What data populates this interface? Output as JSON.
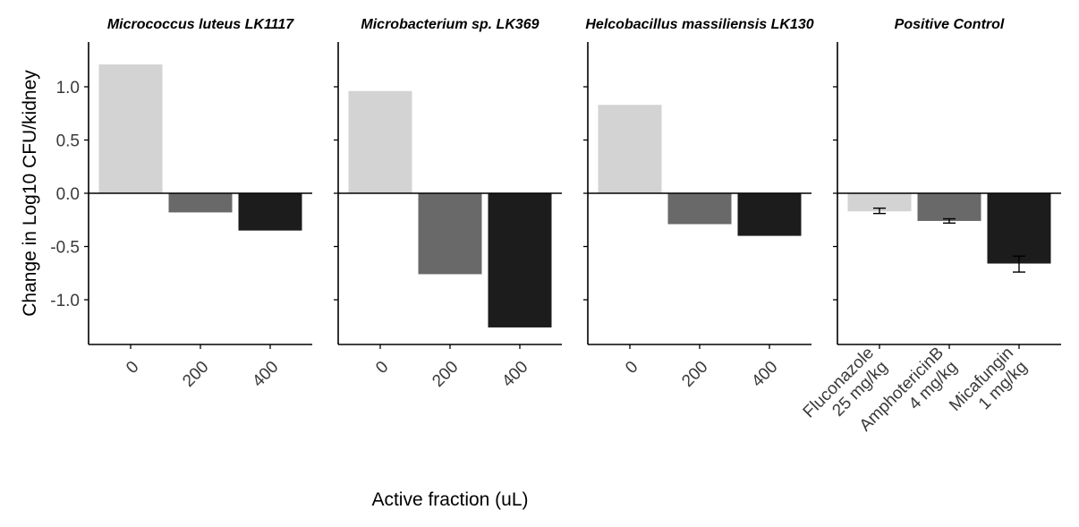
{
  "chart_data": {
    "type": "bar",
    "ylabel": "Change in Log10 CFU/kidney",
    "xlabel": "Active fraction (uL)",
    "ylim": [
      -1.42,
      1.42
    ],
    "yticks": [
      1.0,
      0.5,
      0.0,
      -0.5,
      -1.0
    ],
    "ytick_labels": [
      "1.0",
      "0.5",
      "0.0",
      "-0.5",
      "-1.0"
    ],
    "fill_colors": [
      "#d3d3d3",
      "#696969",
      "#1c1c1c"
    ],
    "panels": [
      {
        "title": "Micrococcus luteus LK1117",
        "categories": [
          "0",
          "200",
          "400"
        ],
        "values": [
          1.21,
          -0.18,
          -0.35
        ]
      },
      {
        "title": "Microbacterium sp. LK369",
        "categories": [
          "0",
          "200",
          "400"
        ],
        "values": [
          0.96,
          -0.76,
          -1.26
        ]
      },
      {
        "title": "Helcobacillus massiliensis LK130",
        "categories": [
          "0",
          "200",
          "400"
        ],
        "values": [
          0.83,
          -0.29,
          -0.4
        ]
      },
      {
        "title": "Positive Control",
        "categories": [
          "Fluconazole\n25 mg/kg",
          "AmphotericinB\n4 mg/kg",
          "Micafungin\n1 mg/kg"
        ],
        "values": [
          -0.17,
          -0.26,
          -0.66
        ],
        "errors": [
          [
            -0.19,
            -0.14
          ],
          [
            -0.28,
            -0.24
          ],
          [
            -0.74,
            -0.59
          ]
        ]
      }
    ]
  }
}
